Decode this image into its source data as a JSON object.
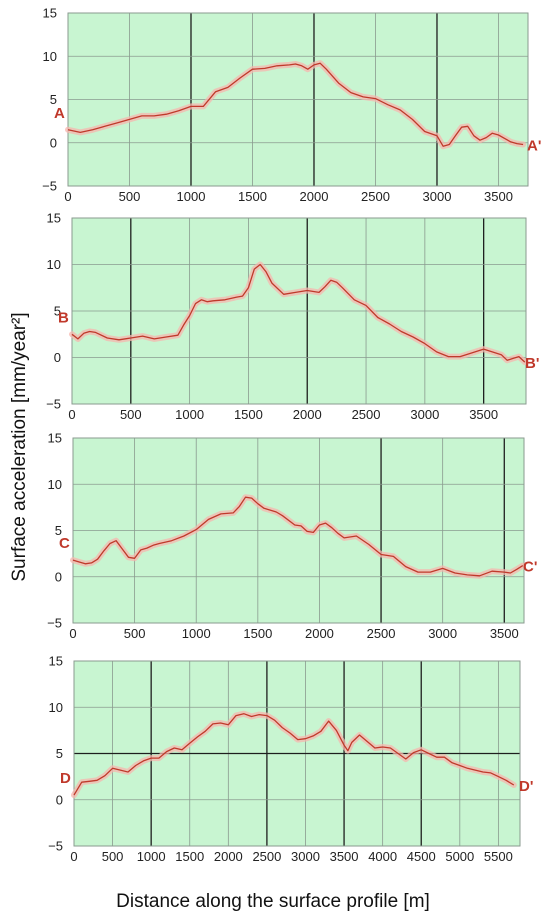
{
  "figure": {
    "ylabel": "Surface acceleration [mm/year²]",
    "xlabel": "Distance along the surface profile [m]"
  },
  "colors": {
    "plot_bg": "#c8f5d1",
    "line": "#c0392b",
    "halo": "#f7b6ae",
    "grid_minor": "#8a9a8f",
    "grid_major": "#1e1e1e",
    "label": "#c0392b"
  },
  "chart_data": [
    {
      "type": "line",
      "start_label": "A",
      "end_label": "A'",
      "ylim": [
        -5,
        15
      ],
      "yticks": [
        -5,
        0,
        5,
        10,
        15
      ],
      "xlim": [
        0,
        3740
      ],
      "xticks": [
        0,
        500,
        1000,
        1500,
        2000,
        2500,
        3000,
        3500
      ],
      "major_x": [
        1000,
        2000,
        3000
      ],
      "major_y": [],
      "grid": true,
      "x": [
        0,
        100,
        200,
        300,
        400,
        500,
        600,
        700,
        800,
        900,
        1000,
        1100,
        1200,
        1300,
        1400,
        1500,
        1600,
        1700,
        1800,
        1850,
        1900,
        1950,
        2000,
        2050,
        2100,
        2200,
        2300,
        2400,
        2500,
        2600,
        2700,
        2800,
        2900,
        3000,
        3050,
        3100,
        3150,
        3200,
        3250,
        3300,
        3350,
        3400,
        3450,
        3500,
        3550,
        3600,
        3650,
        3700
      ],
      "y": [
        1.5,
        1.2,
        1.5,
        1.9,
        2.3,
        2.7,
        3.1,
        3.1,
        3.3,
        3.7,
        4.2,
        4.2,
        5.9,
        6.4,
        7.5,
        8.5,
        8.6,
        8.9,
        9.0,
        9.1,
        8.9,
        8.5,
        9.0,
        9.2,
        8.5,
        6.9,
        5.8,
        5.3,
        5.1,
        4.4,
        3.8,
        2.7,
        1.3,
        0.8,
        -0.4,
        -0.2,
        0.8,
        1.8,
        1.9,
        0.8,
        0.3,
        0.6,
        1.1,
        0.9,
        0.5,
        0.1,
        -0.1,
        -0.2
      ]
    },
    {
      "type": "line",
      "start_label": "B",
      "end_label": "B'",
      "ylim": [
        -5,
        15
      ],
      "yticks": [
        -5,
        0,
        5,
        10,
        15
      ],
      "xlim": [
        0,
        3860
      ],
      "xticks": [
        0,
        500,
        1000,
        1500,
        2000,
        2500,
        3000,
        3500
      ],
      "major_x": [
        500,
        2000,
        3500
      ],
      "major_y": [],
      "grid": true,
      "x": [
        0,
        50,
        100,
        150,
        200,
        300,
        400,
        500,
        600,
        700,
        800,
        900,
        950,
        1000,
        1050,
        1100,
        1150,
        1200,
        1300,
        1400,
        1450,
        1500,
        1550,
        1600,
        1650,
        1700,
        1800,
        1900,
        2000,
        2100,
        2150,
        2200,
        2250,
        2300,
        2400,
        2500,
        2600,
        2700,
        2800,
        2900,
        3000,
        3100,
        3200,
        3300,
        3400,
        3500,
        3550,
        3600,
        3650,
        3700,
        3750,
        3800,
        3850
      ],
      "y": [
        2.5,
        2.0,
        2.6,
        2.8,
        2.7,
        2.1,
        1.9,
        2.1,
        2.3,
        2.0,
        2.2,
        2.4,
        3.5,
        4.5,
        5.8,
        6.2,
        6.0,
        6.1,
        6.2,
        6.5,
        6.6,
        7.5,
        9.5,
        10.0,
        9.2,
        8.0,
        6.8,
        7.0,
        7.2,
        7.0,
        7.6,
        8.3,
        8.1,
        7.5,
        6.2,
        5.6,
        4.3,
        3.6,
        2.8,
        2.2,
        1.5,
        0.6,
        0.1,
        0.1,
        0.5,
        0.9,
        0.7,
        0.5,
        0.3,
        -0.3,
        -0.1,
        0.1,
        -0.5
      ]
    },
    {
      "type": "line",
      "start_label": "C",
      "end_label": "C'",
      "ylim": [
        -5,
        15
      ],
      "yticks": [
        -5,
        0,
        5,
        10,
        15
      ],
      "xlim": [
        0,
        3660
      ],
      "xticks": [
        0,
        500,
        1000,
        1500,
        2000,
        2500,
        3000,
        3500
      ],
      "major_x": [
        2500,
        3500
      ],
      "major_y": [],
      "grid": true,
      "x": [
        0,
        50,
        100,
        150,
        200,
        250,
        300,
        350,
        400,
        450,
        500,
        550,
        600,
        650,
        700,
        800,
        900,
        1000,
        1100,
        1200,
        1300,
        1350,
        1400,
        1450,
        1500,
        1550,
        1600,
        1650,
        1700,
        1800,
        1850,
        1900,
        1950,
        2000,
        2050,
        2100,
        2150,
        2200,
        2300,
        2400,
        2500,
        2600,
        2700,
        2800,
        2900,
        3000,
        3100,
        3200,
        3300,
        3400,
        3500,
        3550,
        3600,
        3650
      ],
      "y": [
        1.8,
        1.6,
        1.4,
        1.5,
        1.9,
        2.8,
        3.6,
        3.9,
        3.0,
        2.1,
        2.0,
        2.9,
        3.1,
        3.4,
        3.6,
        3.9,
        4.4,
        5.1,
        6.2,
        6.8,
        6.9,
        7.6,
        8.6,
        8.5,
        7.9,
        7.4,
        7.2,
        7.0,
        6.6,
        5.6,
        5.5,
        4.9,
        4.8,
        5.6,
        5.8,
        5.3,
        4.7,
        4.2,
        4.4,
        3.5,
        2.4,
        2.2,
        1.1,
        0.5,
        0.5,
        0.9,
        0.4,
        0.2,
        0.1,
        0.6,
        0.5,
        0.4,
        0.8,
        1.2
      ]
    },
    {
      "type": "line",
      "start_label": "D",
      "end_label": "D'",
      "ylim": [
        -5,
        15
      ],
      "yticks": [
        -5,
        0,
        5,
        10,
        15
      ],
      "xlim": [
        0,
        5780
      ],
      "xticks": [
        0,
        500,
        1000,
        1500,
        2000,
        2500,
        3000,
        3500,
        4000,
        4500,
        5000,
        5500
      ],
      "major_x": [
        1000,
        2500,
        3500,
        4500
      ],
      "major_y": [
        5
      ],
      "grid": true,
      "x": [
        0,
        100,
        200,
        300,
        400,
        500,
        600,
        700,
        800,
        900,
        1000,
        1100,
        1200,
        1300,
        1400,
        1500,
        1600,
        1700,
        1800,
        1900,
        2000,
        2100,
        2200,
        2300,
        2400,
        2500,
        2600,
        2700,
        2800,
        2900,
        3000,
        3100,
        3200,
        3300,
        3400,
        3500,
        3550,
        3600,
        3700,
        3800,
        3900,
        4000,
        4100,
        4200,
        4300,
        4400,
        4500,
        4600,
        4700,
        4800,
        4900,
        5000,
        5100,
        5200,
        5300,
        5400,
        5500,
        5600,
        5700
      ],
      "y": [
        0.5,
        1.9,
        2.0,
        2.1,
        2.6,
        3.4,
        3.2,
        3.0,
        3.7,
        4.2,
        4.5,
        4.5,
        5.2,
        5.6,
        5.4,
        6.1,
        6.8,
        7.4,
        8.2,
        8.3,
        8.1,
        9.1,
        9.3,
        9.0,
        9.2,
        9.1,
        8.6,
        7.8,
        7.2,
        6.5,
        6.6,
        6.9,
        7.4,
        8.5,
        7.5,
        5.9,
        5.3,
        6.2,
        7.0,
        6.3,
        5.6,
        5.7,
        5.6,
        5.0,
        4.4,
        5.1,
        5.4,
        5.0,
        4.6,
        4.6,
        4.0,
        3.7,
        3.4,
        3.2,
        3.0,
        2.9,
        2.5,
        2.1,
        1.6
      ]
    }
  ]
}
